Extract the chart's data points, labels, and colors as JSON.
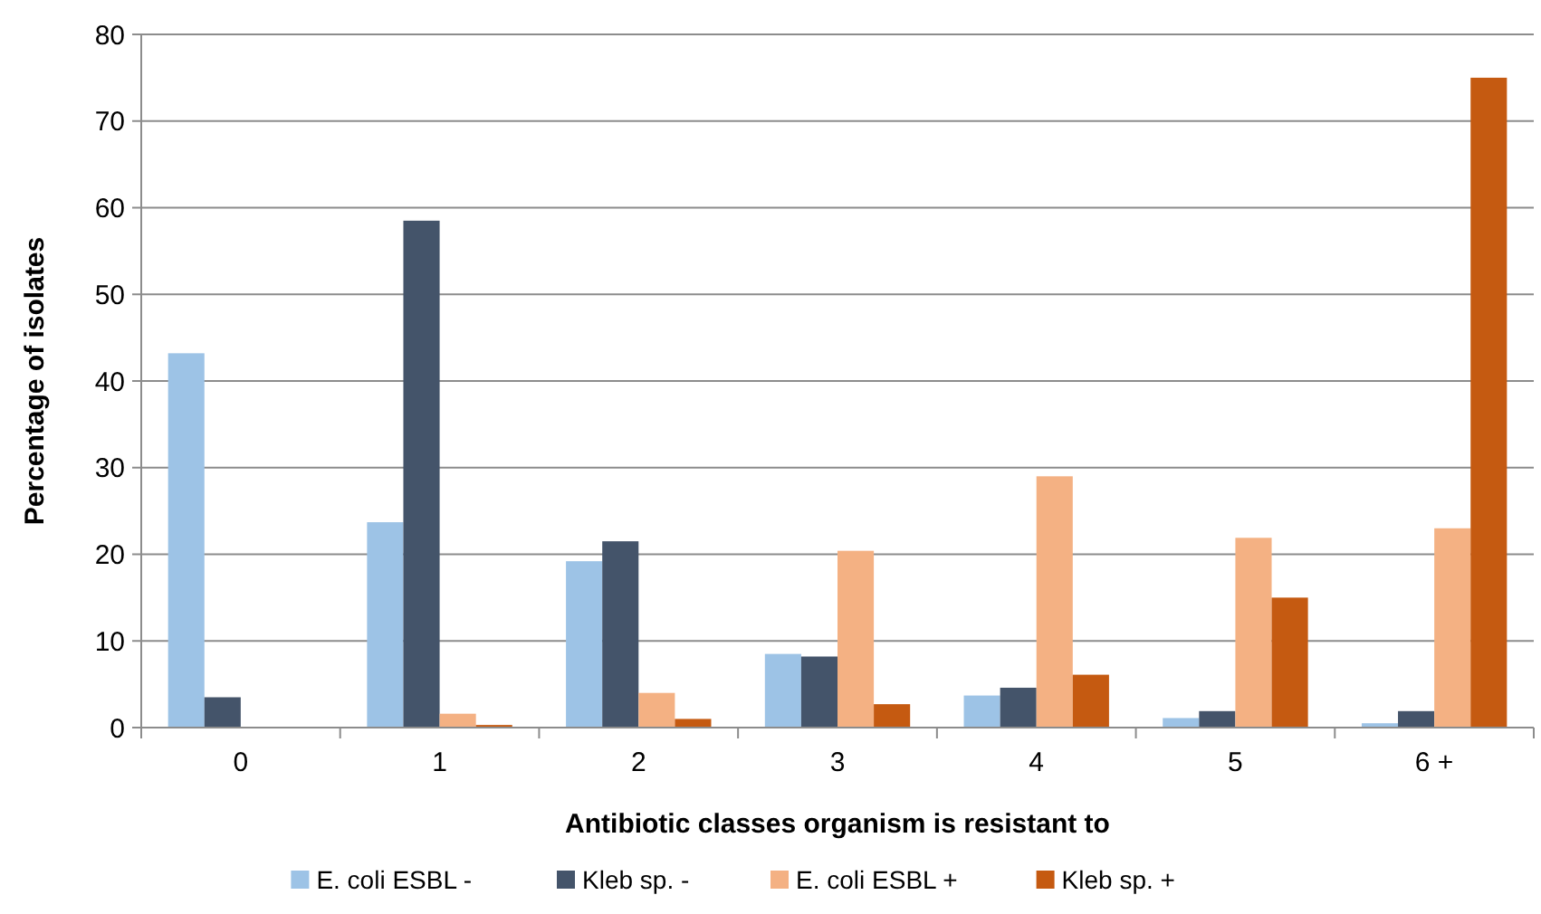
{
  "chart_data": {
    "type": "bar",
    "xlabel": "Antibiotic classes organism is resistant to",
    "ylabel": "Percentage of isolates",
    "categories": [
      "0",
      "1",
      "2",
      "3",
      "4",
      "5",
      "6 +"
    ],
    "series": [
      {
        "name": "E. coli ESBL -",
        "color": "#9dc3e6",
        "values": [
          43.2,
          23.7,
          19.2,
          8.5,
          3.7,
          1.1,
          0.5
        ]
      },
      {
        "name": "Kleb sp. -",
        "color": "#44546a",
        "values": [
          3.5,
          58.5,
          21.5,
          8.2,
          4.6,
          1.9,
          1.9
        ]
      },
      {
        "name": "E. coli ESBL +",
        "color": "#f4b183",
        "values": [
          0,
          1.6,
          4.0,
          20.4,
          29.0,
          21.9,
          23.0
        ]
      },
      {
        "name": "Kleb sp. +",
        "color": "#c55a11",
        "values": [
          0,
          0.3,
          1.0,
          2.7,
          6.1,
          15.0,
          75.0
        ]
      }
    ],
    "ylim": [
      0,
      80
    ],
    "yticks": [
      0,
      10,
      20,
      30,
      40,
      50,
      60,
      70,
      80
    ],
    "grid": "y",
    "legend": "bottom"
  }
}
